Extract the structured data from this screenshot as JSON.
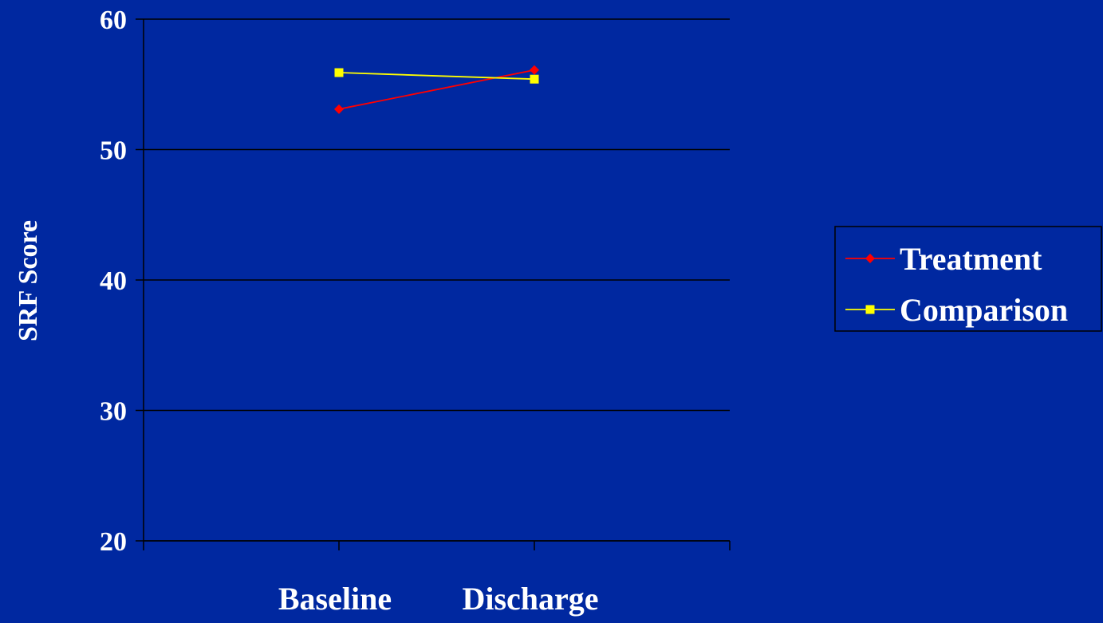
{
  "chart_data": {
    "type": "line",
    "title": "",
    "xlabel": "",
    "ylabel": "SRF Score",
    "categories": [
      "Baseline",
      "Discharge"
    ],
    "ylim": [
      20,
      60
    ],
    "yticks": [
      "20",
      "30",
      "40",
      "50",
      "60"
    ],
    "grid": true,
    "legend_position": "right",
    "series": [
      {
        "name": "Treatment",
        "values": [
          53.1,
          56.1
        ],
        "color": "#FF0000",
        "marker": "diamond"
      },
      {
        "name": "Comparison",
        "values": [
          55.9,
          55.4
        ],
        "color": "#FFFF00",
        "marker": "square"
      }
    ]
  },
  "colors": {
    "background": "#0028A0",
    "axis": "#000000",
    "text": "#FFFFFF"
  }
}
